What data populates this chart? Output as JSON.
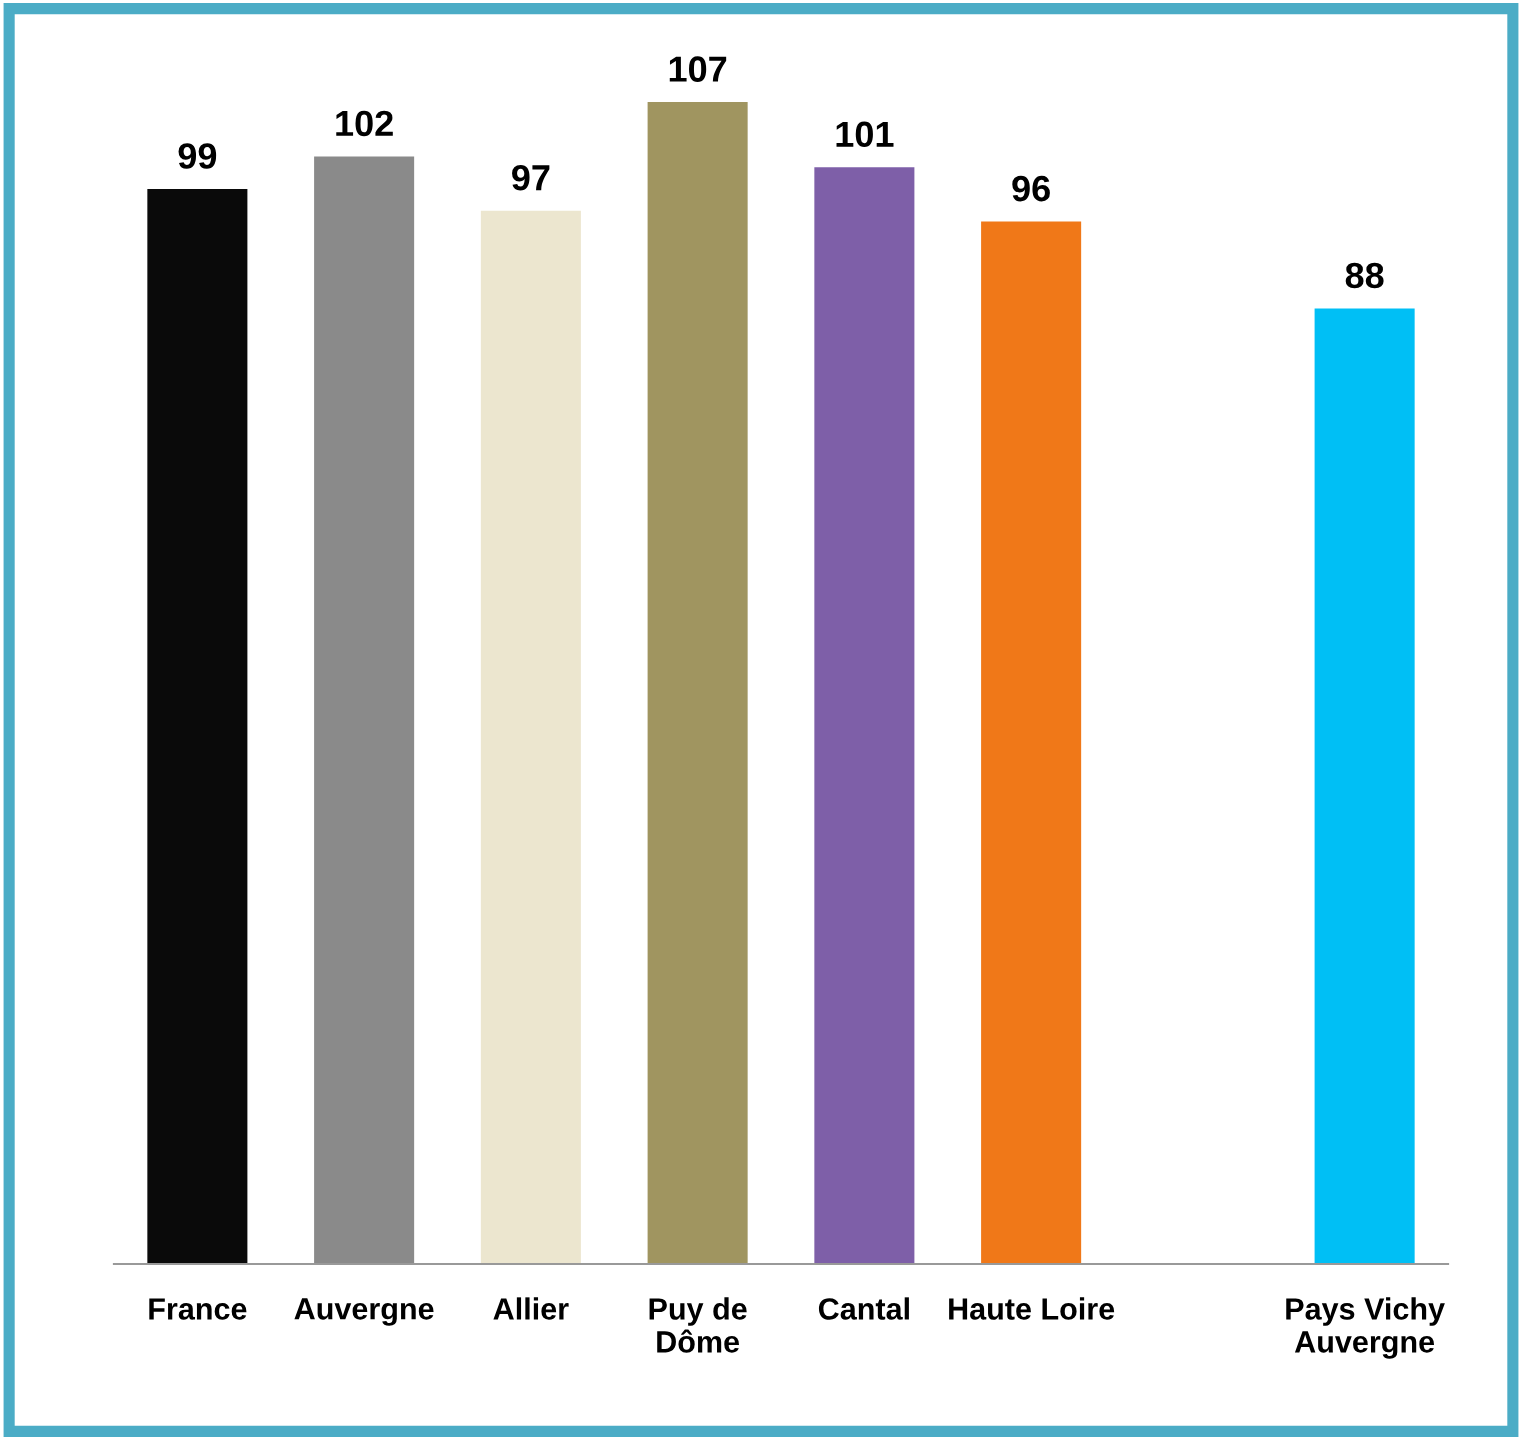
{
  "chart_data": {
    "type": "bar",
    "categories": [
      "France",
      "Auvergne",
      "Allier",
      "Puy de\nDôme",
      "Cantal",
      "Haute Loire",
      null,
      "Pays Vichy\nAuvergne"
    ],
    "values": [
      99,
      102,
      97,
      107,
      101,
      96,
      null,
      88
    ],
    "colors": [
      "#0a0a0a",
      "#8a8a8a",
      "#ece6cf",
      "#a09560",
      "#7e5fa8",
      "#f07818",
      "#ffffff",
      "#00bff5"
    ],
    "tick_labels": "x",
    "data_labels": true,
    "grid": false,
    "legend": false
  }
}
